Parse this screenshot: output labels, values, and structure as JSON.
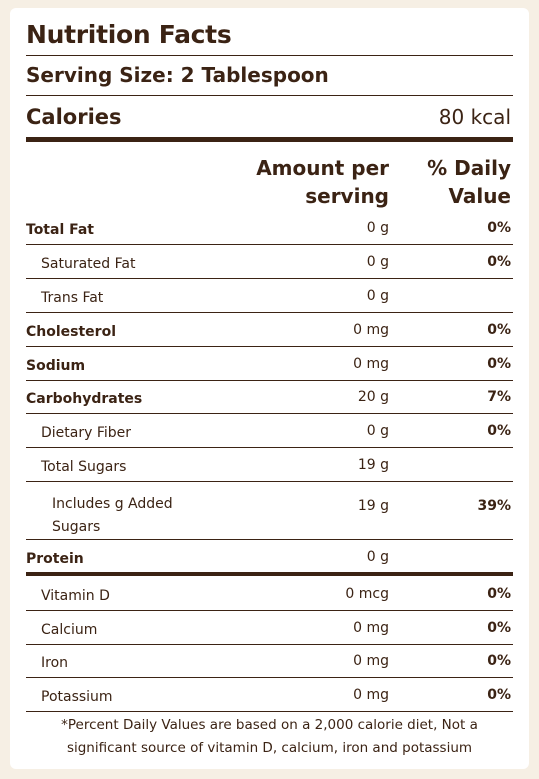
{
  "title": "Nutrition Facts",
  "serving_size": "Serving Size: 2 Tablespoon",
  "calories": {
    "label": "Calories",
    "value": "80 kcal"
  },
  "columns": {
    "amount_line1": "Amount per",
    "amount_line2": "serving",
    "dv_line1": "% Daily",
    "dv_line2": "Value"
  },
  "nutrients": [
    {
      "label": "Total Fat",
      "amount": "0 g",
      "dv": "0%"
    },
    {
      "label": "Saturated Fat",
      "amount": "0 g",
      "dv": "0%"
    },
    {
      "label": "Trans Fat",
      "amount": "0 g",
      "dv": ""
    },
    {
      "label": "Cholesterol",
      "amount": "0 mg",
      "dv": "0%"
    },
    {
      "label": "Sodium",
      "amount": "0 mg",
      "dv": "0%"
    },
    {
      "label": "Carbohydrates",
      "amount": "20 g",
      "dv": "7%"
    },
    {
      "label": "Dietary Fiber",
      "amount": "0 g",
      "dv": "0%"
    },
    {
      "label": "Total Sugars",
      "amount": "19 g",
      "dv": ""
    },
    {
      "label_line1": "Includes g Added",
      "label_line2": "Sugars",
      "amount": "19 g",
      "dv": "39%"
    },
    {
      "label": "Protein",
      "amount": "0 g",
      "dv": ""
    }
  ],
  "vitamins": [
    {
      "label": "Vitamin D",
      "amount": "0 mcg",
      "dv": "0%"
    },
    {
      "label": "Calcium",
      "amount": "0 mg",
      "dv": "0%"
    },
    {
      "label": "Iron",
      "amount": "0 mg",
      "dv": "0%"
    },
    {
      "label": "Potassium",
      "amount": "0 mg",
      "dv": "0%"
    }
  ],
  "footnote_line1": "*Percent Daily Values are based on a 2,000 calorie diet, Not a",
  "footnote_line2": "significant source of vitamin D, calcium, iron and potassium"
}
